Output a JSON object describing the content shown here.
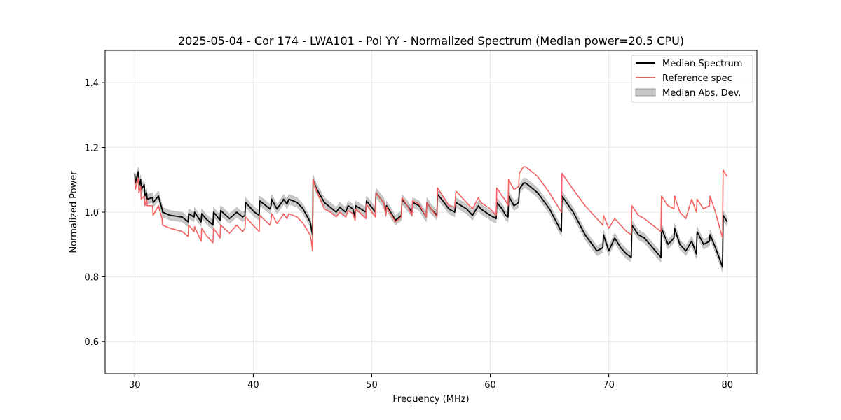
{
  "chart_data": {
    "type": "line",
    "title": "2025-05-04 - Cor 174 - LWA101 - Pol YY - Normalized Spectrum (Median power=20.5 CPU)",
    "xlabel": "Frequency (MHz)",
    "ylabel": "Normalized Power",
    "xlim": [
      27.5,
      82.5
    ],
    "ylim": [
      0.5,
      1.5
    ],
    "xticks": [
      30,
      40,
      50,
      60,
      70,
      80
    ],
    "yticks": [
      0.6,
      0.8,
      1.0,
      1.2,
      1.4
    ],
    "xtick_labels": [
      "30",
      "40",
      "50",
      "60",
      "70",
      "80"
    ],
    "ytick_labels": [
      "0.6",
      "0.8",
      "1.0",
      "1.2",
      "1.4"
    ],
    "grid": true,
    "legend_position": "top-right",
    "legend": [
      "Median Spectrum",
      "Reference spec",
      "Median Abs. Dev."
    ],
    "mad_halfwidth": 0.015,
    "colors": {
      "median": "#000000",
      "reference": "#f26060",
      "mad": "#c8c8c8"
    },
    "series": [
      {
        "name": "Median Spectrum",
        "x": [
          30.0,
          30.05,
          30.3,
          30.35,
          30.5,
          30.55,
          30.8,
          30.85,
          31.0,
          31.05,
          31.5,
          31.55,
          32.0,
          32.3,
          32.35,
          33.0,
          34.0,
          34.5,
          34.55,
          35.0,
          35.05,
          35.6,
          35.65,
          36.0,
          36.6,
          36.65,
          37.2,
          37.25,
          38.0,
          38.6,
          39.1,
          39.3,
          39.35,
          40.1,
          40.5,
          40.55,
          41.4,
          41.5,
          41.55,
          42.0,
          42.5,
          42.55,
          42.85,
          43.0,
          43.7,
          44.2,
          44.8,
          44.9,
          45.0,
          45.05,
          45.3,
          46.0,
          46.5,
          47.0,
          47.3,
          47.8,
          48.0,
          48.4,
          48.6,
          48.65,
          49.5,
          49.55,
          50.0,
          50.3,
          50.35,
          51.0,
          51.2,
          51.25,
          52.0,
          52.5,
          52.55,
          53.0,
          53.4,
          53.45,
          54.0,
          54.6,
          54.65,
          55.0,
          55.5,
          55.55,
          56.0,
          56.5,
          57.0,
          57.1,
          58.0,
          58.5,
          59.0,
          59.2,
          60.0,
          60.5,
          60.55,
          61.0,
          61.3,
          61.5,
          61.55,
          62.0,
          62.4,
          62.45,
          62.8,
          63.0,
          64.0,
          65.0,
          66.0,
          66.05,
          67.0,
          68.0,
          69.0,
          69.5,
          69.55,
          70.0,
          70.5,
          71.0,
          71.5,
          71.9,
          71.95,
          72.5,
          73.0,
          74.4,
          74.45,
          75.0,
          75.5,
          75.55,
          76.0,
          76.5,
          77.0,
          77.4,
          77.45,
          78.0,
          78.5,
          78.55,
          79.0,
          79.6,
          79.65,
          80.0
        ],
        "values": [
          1.12,
          1.09,
          1.125,
          1.08,
          1.1,
          1.07,
          1.085,
          1.05,
          1.06,
          1.04,
          1.045,
          1.03,
          1.05,
          1.01,
          1.0,
          0.99,
          0.985,
          0.97,
          0.995,
          0.985,
          1.0,
          0.97,
          0.995,
          0.98,
          0.96,
          1.0,
          0.975,
          1.005,
          0.98,
          1.0,
          0.985,
          0.99,
          1.03,
          1.0,
          0.99,
          1.035,
          1.01,
          1.02,
          1.04,
          1.01,
          1.035,
          1.04,
          1.025,
          1.04,
          1.03,
          1.01,
          0.97,
          0.95,
          0.93,
          1.1,
          1.075,
          1.03,
          1.015,
          1.0,
          1.015,
          1.0,
          1.02,
          1.01,
          0.985,
          1.02,
          1.0,
          1.035,
          1.015,
          1.0,
          1.06,
          1.03,
          1.0,
          1.02,
          0.975,
          0.99,
          1.04,
          1.02,
          1.0,
          1.03,
          1.02,
          0.985,
          1.03,
          1.01,
          0.99,
          1.055,
          1.035,
          1.01,
          1.0,
          1.03,
          1.01,
          0.99,
          1.02,
          1.01,
          0.99,
          0.98,
          1.03,
          1.01,
          0.99,
          0.985,
          1.05,
          1.02,
          1.03,
          1.07,
          1.09,
          1.09,
          1.06,
          1.01,
          0.94,
          1.05,
          1.0,
          0.93,
          0.88,
          0.89,
          0.93,
          0.88,
          0.92,
          0.89,
          0.87,
          0.86,
          0.96,
          0.93,
          0.92,
          0.86,
          0.95,
          0.9,
          0.92,
          0.95,
          0.9,
          0.88,
          0.91,
          0.87,
          0.94,
          0.9,
          0.91,
          0.93,
          0.89,
          0.83,
          0.99,
          0.97
        ]
      },
      {
        "name": "Reference spec",
        "x": [
          30.0,
          30.05,
          30.3,
          30.35,
          30.5,
          30.55,
          30.8,
          30.85,
          31.0,
          31.05,
          31.5,
          31.55,
          32.0,
          32.3,
          32.35,
          33.0,
          34.0,
          34.5,
          34.55,
          35.0,
          35.05,
          35.6,
          35.65,
          36.0,
          36.6,
          36.65,
          37.2,
          37.25,
          38.0,
          38.6,
          39.1,
          39.3,
          39.35,
          40.1,
          40.5,
          40.55,
          41.4,
          41.5,
          41.55,
          42.0,
          42.5,
          42.55,
          42.85,
          43.0,
          43.7,
          44.2,
          44.8,
          44.9,
          45.0,
          45.05,
          45.3,
          46.0,
          46.5,
          47.0,
          47.3,
          47.8,
          48.0,
          48.4,
          48.6,
          48.65,
          49.5,
          49.55,
          50.0,
          50.3,
          50.35,
          51.0,
          51.2,
          51.25,
          52.0,
          52.5,
          52.55,
          53.0,
          53.4,
          53.45,
          54.0,
          54.6,
          54.65,
          55.0,
          55.5,
          55.55,
          56.0,
          56.5,
          57.0,
          57.1,
          58.0,
          58.5,
          59.0,
          59.2,
          60.0,
          60.5,
          60.55,
          61.0,
          61.3,
          61.5,
          61.55,
          62.0,
          62.4,
          62.45,
          62.8,
          63.0,
          64.0,
          65.0,
          66.0,
          66.05,
          67.0,
          68.0,
          69.0,
          69.5,
          69.55,
          70.0,
          70.5,
          71.0,
          71.5,
          71.9,
          71.95,
          72.5,
          73.0,
          74.4,
          74.45,
          75.0,
          75.5,
          75.55,
          76.0,
          76.5,
          77.0,
          77.4,
          77.45,
          78.0,
          78.5,
          78.55,
          79.0,
          79.6,
          79.65,
          80.0
        ],
        "values": [
          1.1,
          1.07,
          1.105,
          1.06,
          1.08,
          1.04,
          1.05,
          1.02,
          1.04,
          1.02,
          1.02,
          0.99,
          1.02,
          0.98,
          0.96,
          0.95,
          0.94,
          0.925,
          0.96,
          0.94,
          0.955,
          0.91,
          0.95,
          0.93,
          0.905,
          0.95,
          0.92,
          0.96,
          0.935,
          0.96,
          0.94,
          0.95,
          0.985,
          0.955,
          0.94,
          0.99,
          0.96,
          0.975,
          0.995,
          0.965,
          0.99,
          0.995,
          0.98,
          0.995,
          0.985,
          0.965,
          0.93,
          0.91,
          0.88,
          1.1,
          1.07,
          1.01,
          1.0,
          0.985,
          1.0,
          0.985,
          1.005,
          0.995,
          0.975,
          1.01,
          0.98,
          1.025,
          1.0,
          0.985,
          1.06,
          1.03,
          0.99,
          1.015,
          0.97,
          0.985,
          1.045,
          1.02,
          0.99,
          1.035,
          1.025,
          0.985,
          1.03,
          1.01,
          0.985,
          1.075,
          1.05,
          1.02,
          1.015,
          1.065,
          1.03,
          1.01,
          1.045,
          1.03,
          1.01,
          0.99,
          1.075,
          1.05,
          1.035,
          1.02,
          1.1,
          1.07,
          1.08,
          1.12,
          1.14,
          1.14,
          1.11,
          1.06,
          1.0,
          1.12,
          1.07,
          1.02,
          0.98,
          0.96,
          0.99,
          0.95,
          0.98,
          0.96,
          0.94,
          0.93,
          1.02,
          0.99,
          0.98,
          0.94,
          1.05,
          1.02,
          1.01,
          1.05,
          1.0,
          0.98,
          1.04,
          1.0,
          1.04,
          1.01,
          1.02,
          1.05,
          1.0,
          0.92,
          1.13,
          1.11
        ]
      }
    ]
  }
}
